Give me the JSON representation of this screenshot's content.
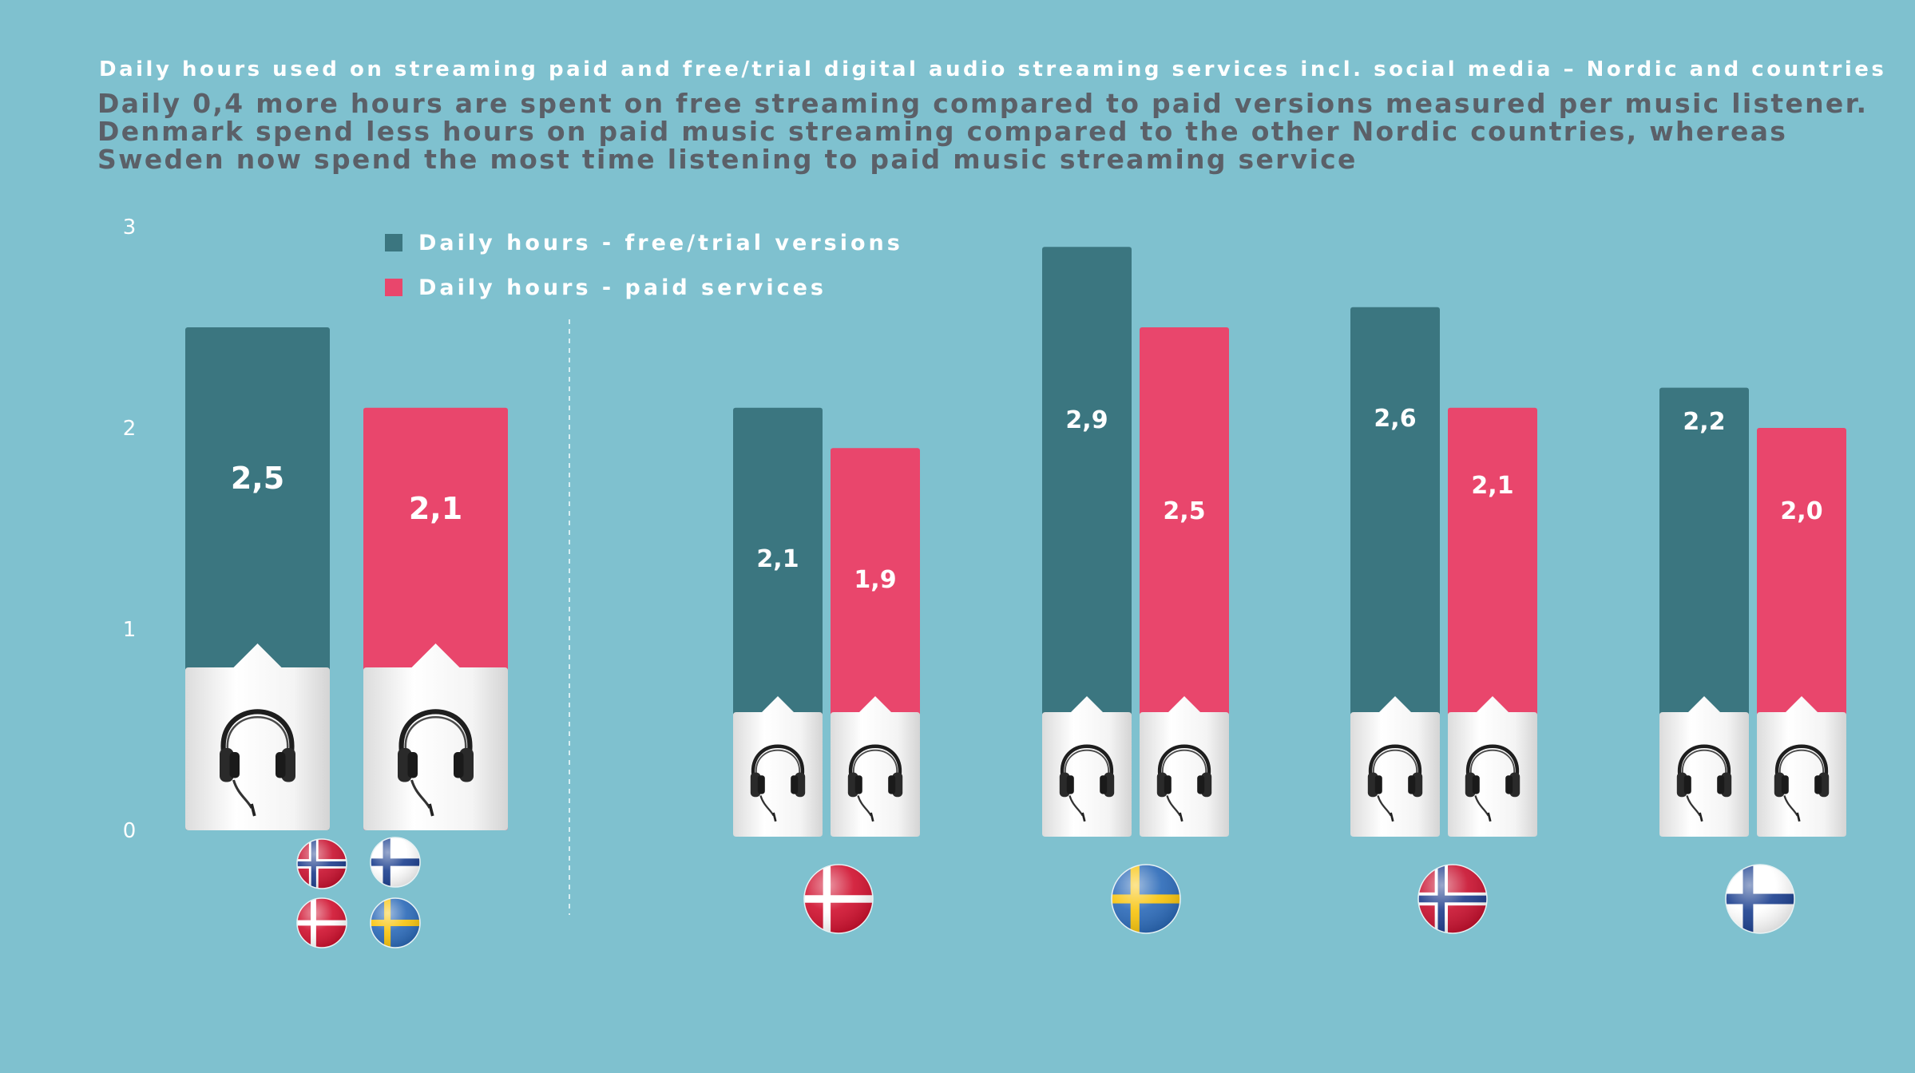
{
  "title": "Daily hours used on streaming paid and free/trial digital audio streaming services incl. social media – Nordic and countries",
  "subtitle": "Daily 0,4 more hours are spent on free streaming compared to paid versions measured per music listener. Denmark spend less hours on paid music streaming compared to the other Nordic countries, whereas Sweden now spend the most time listening to paid music streaming service",
  "colors": {
    "free": "#3b7680",
    "paid": "#e9466c",
    "background": "#7fc1cf"
  },
  "chart_data": {
    "type": "bar",
    "categories": [
      "Nordic",
      "Denmark",
      "Sweden",
      "Norway",
      "Finland"
    ],
    "category_icons": [
      "nordic-flags-icon",
      "denmark-flag-icon",
      "sweden-flag-icon",
      "norway-flag-icon",
      "finland-flag-icon"
    ],
    "series": [
      {
        "name": "Daily hours - free/trial versions",
        "values": [
          2.5,
          2.1,
          2.9,
          2.6,
          2.2
        ],
        "labels": [
          "2,5",
          "2,1",
          "2,9",
          "2,6",
          "2,2"
        ],
        "color": "#3b7680"
      },
      {
        "name": "Daily hours - paid services",
        "values": [
          2.1,
          1.9,
          2.5,
          2.1,
          2.0
        ],
        "labels": [
          "2,1",
          "1,9",
          "2,5",
          "2,1",
          "2,0"
        ],
        "color": "#e9466c"
      }
    ],
    "ylim": [
      0,
      3
    ],
    "yticks": [
      "0",
      "1",
      "2",
      "3"
    ],
    "legend_position": "top-left",
    "bar_icon": "headphones-icon",
    "grid": false
  }
}
